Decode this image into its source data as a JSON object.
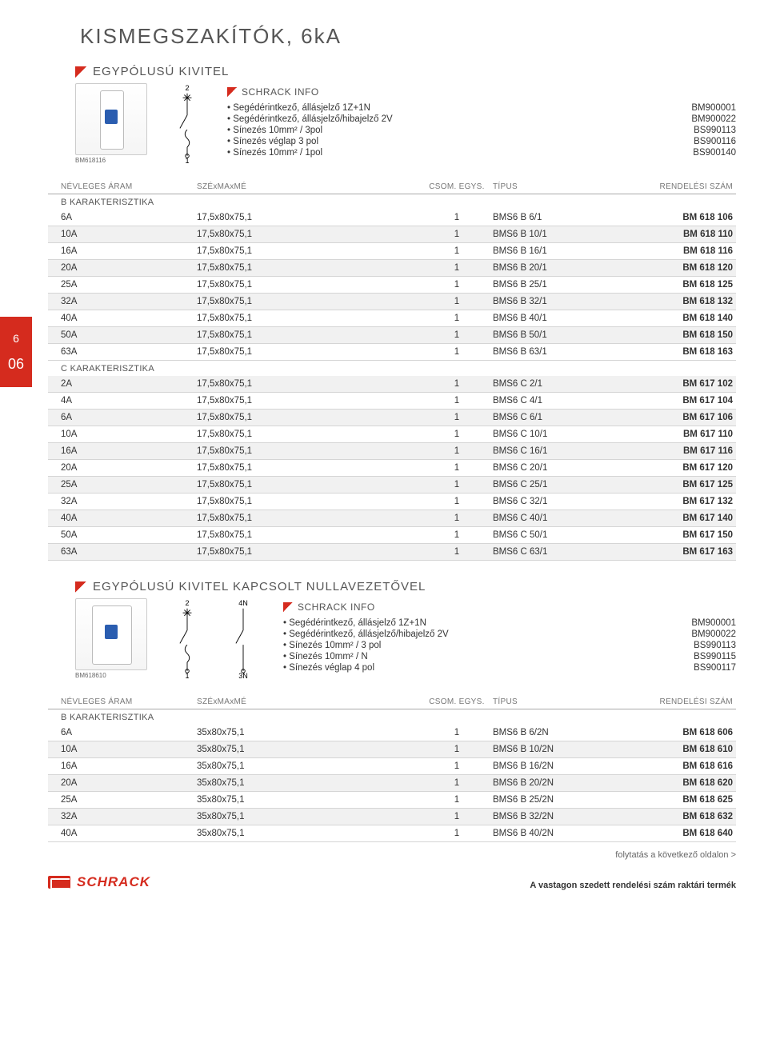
{
  "page_title": "KISMEGSZAKÍTÓK, 6kA",
  "side_tab": {
    "line1": "6",
    "line2": "06"
  },
  "section1": {
    "title": "EGYPÓLUSÚ KIVITEL",
    "image_caption": "BM618116",
    "symbol_top": "2",
    "symbol_bottom": "1",
    "info_title": "SCHRACK INFO",
    "info_items": [
      {
        "desc": "Segédérintkező, állásjelző 1Z+1N",
        "code": "BM900001"
      },
      {
        "desc": "Segédérintkező, állásjelző/hibajelző 2V",
        "code": "BM900022"
      },
      {
        "desc": "Sínezés 10mm² / 3pol",
        "code": "BS990113"
      },
      {
        "desc": "Sínezés véglap 3 pol",
        "code": "BS900116"
      },
      {
        "desc": "Sínezés 10mm² / 1pol",
        "code": "BS900140"
      }
    ],
    "columns": [
      "NÉVLEGES ÁRAM",
      "SZÉxMAxMÉ",
      "CSOM. EGYS.",
      "TÍPUS",
      "RENDELÉSI SZÁM"
    ],
    "groupB_label": "B KARAKTERISZTIKA",
    "groupB": [
      {
        "c1": "6A",
        "c2": "17,5x80x75,1",
        "c3": "1",
        "c4": "BMS6 B 6/1",
        "c5": "BM 618 106",
        "shade": false
      },
      {
        "c1": "10A",
        "c2": "17,5x80x75,1",
        "c3": "1",
        "c4": "BMS6 B 10/1",
        "c5": "BM 618 110",
        "shade": true
      },
      {
        "c1": "16A",
        "c2": "17,5x80x75,1",
        "c3": "1",
        "c4": "BMS6 B 16/1",
        "c5": "BM 618 116",
        "shade": false
      },
      {
        "c1": "20A",
        "c2": "17,5x80x75,1",
        "c3": "1",
        "c4": "BMS6 B 20/1",
        "c5": "BM 618 120",
        "shade": true
      },
      {
        "c1": "25A",
        "c2": "17,5x80x75,1",
        "c3": "1",
        "c4": "BMS6 B 25/1",
        "c5": "BM 618 125",
        "shade": false
      },
      {
        "c1": "32A",
        "c2": "17,5x80x75,1",
        "c3": "1",
        "c4": "BMS6 B 32/1",
        "c5": "BM 618 132",
        "shade": true
      },
      {
        "c1": "40A",
        "c2": "17,5x80x75,1",
        "c3": "1",
        "c4": "BMS6 B 40/1",
        "c5": "BM 618 140",
        "shade": false
      },
      {
        "c1": "50A",
        "c2": "17,5x80x75,1",
        "c3": "1",
        "c4": "BMS6 B 50/1",
        "c5": "BM 618 150",
        "shade": true
      },
      {
        "c1": "63A",
        "c2": "17,5x80x75,1",
        "c3": "1",
        "c4": "BMS6 B 63/1",
        "c5": "BM 618 163",
        "shade": false
      }
    ],
    "groupC_label": "C KARAKTERISZTIKA",
    "groupC": [
      {
        "c1": "2A",
        "c2": "17,5x80x75,1",
        "c3": "1",
        "c4": "BMS6 C 2/1",
        "c5": "BM 617 102",
        "shade": true
      },
      {
        "c1": "4A",
        "c2": "17,5x80x75,1",
        "c3": "1",
        "c4": "BMS6 C 4/1",
        "c5": "BM 617 104",
        "shade": false
      },
      {
        "c1": "6A",
        "c2": "17,5x80x75,1",
        "c3": "1",
        "c4": "BMS6 C 6/1",
        "c5": "BM 617 106",
        "shade": true
      },
      {
        "c1": "10A",
        "c2": "17,5x80x75,1",
        "c3": "1",
        "c4": "BMS6 C 10/1",
        "c5": "BM 617 110",
        "shade": false
      },
      {
        "c1": "16A",
        "c2": "17,5x80x75,1",
        "c3": "1",
        "c4": "BMS6 C 16/1",
        "c5": "BM 617 116",
        "shade": true
      },
      {
        "c1": "20A",
        "c2": "17,5x80x75,1",
        "c3": "1",
        "c4": "BMS6 C 20/1",
        "c5": "BM 617 120",
        "shade": false
      },
      {
        "c1": "25A",
        "c2": "17,5x80x75,1",
        "c3": "1",
        "c4": "BMS6 C 25/1",
        "c5": "BM 617 125",
        "shade": true
      },
      {
        "c1": "32A",
        "c2": "17,5x80x75,1",
        "c3": "1",
        "c4": "BMS6 C 32/1",
        "c5": "BM 617 132",
        "shade": false
      },
      {
        "c1": "40A",
        "c2": "17,5x80x75,1",
        "c3": "1",
        "c4": "BMS6 C 40/1",
        "c5": "BM 617 140",
        "shade": true
      },
      {
        "c1": "50A",
        "c2": "17,5x80x75,1",
        "c3": "1",
        "c4": "BMS6 C 50/1",
        "c5": "BM 617 150",
        "shade": false
      },
      {
        "c1": "63A",
        "c2": "17,5x80x75,1",
        "c3": "1",
        "c4": "BMS6 C 63/1",
        "c5": "BM 617 163",
        "shade": true
      }
    ]
  },
  "section2": {
    "title": "EGYPÓLUSÚ KIVITEL KAPCSOLT NULLAVEZETŐVEL",
    "image_caption": "BM618610",
    "sym_labels": {
      "tl": "2",
      "tr": "4N",
      "bl": "1",
      "br": "3N"
    },
    "info_title": "SCHRACK INFO",
    "info_items": [
      {
        "desc": "Segédérintkező, állásjelző 1Z+1N",
        "code": "BM900001"
      },
      {
        "desc": "Segédérintkező, állásjelző/hibajelző 2V",
        "code": "BM900022"
      },
      {
        "desc": "Sínezés 10mm² / 3 pol",
        "code": "BS990113"
      },
      {
        "desc": "Sínezés 10mm² / N",
        "code": "BS990115"
      },
      {
        "desc": "Sínezés véglap 4 pol",
        "code": "BS900117"
      }
    ],
    "columns": [
      "NÉVLEGES ÁRAM",
      "SZÉxMAxMÉ",
      "CSOM. EGYS.",
      "TÍPUS",
      "RENDELÉSI SZÁM"
    ],
    "groupB_label": "B KARAKTERISZTIKA",
    "groupB": [
      {
        "c1": "6A",
        "c2": "35x80x75,1",
        "c3": "1",
        "c4": "BMS6 B 6/2N",
        "c5": "BM 618 606",
        "shade": false
      },
      {
        "c1": "10A",
        "c2": "35x80x75,1",
        "c3": "1",
        "c4": "BMS6 B 10/2N",
        "c5": "BM 618 610",
        "shade": true
      },
      {
        "c1": "16A",
        "c2": "35x80x75,1",
        "c3": "1",
        "c4": "BMS6 B 16/2N",
        "c5": "BM 618 616",
        "shade": false
      },
      {
        "c1": "20A",
        "c2": "35x80x75,1",
        "c3": "1",
        "c4": "BMS6 B 20/2N",
        "c5": "BM 618 620",
        "shade": true
      },
      {
        "c1": "25A",
        "c2": "35x80x75,1",
        "c3": "1",
        "c4": "BMS6 B 25/2N",
        "c5": "BM 618 625",
        "shade": false
      },
      {
        "c1": "32A",
        "c2": "35x80x75,1",
        "c3": "1",
        "c4": "BMS6 B 32/2N",
        "c5": "BM 618 632",
        "shade": true
      },
      {
        "c1": "40A",
        "c2": "35x80x75,1",
        "c3": "1",
        "c4": "BMS6 B 40/2N",
        "c5": "BM 618 640",
        "shade": false
      }
    ]
  },
  "footer": {
    "cont": "folytatás a következő oldalon >",
    "note": "A vastagon szedett rendelési szám raktári termék",
    "logo_text": "SCHRACK"
  },
  "colors": {
    "accent": "#d52b1e",
    "shade_bg": "#f1f1f1",
    "border": "#d5d5d5",
    "header_text": "#777"
  }
}
